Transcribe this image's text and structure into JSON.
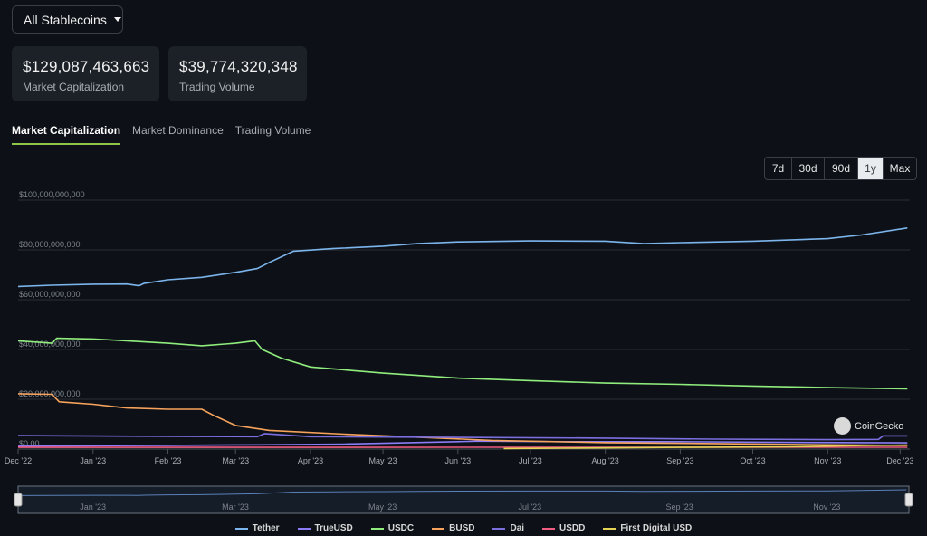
{
  "header": {
    "dropdown_label": "All Stablecoins",
    "stats": [
      {
        "value": "$129,087,463,663",
        "label": "Market Capitalization"
      },
      {
        "value": "$39,774,320,348",
        "label": "Trading Volume"
      }
    ]
  },
  "tabs": [
    {
      "label": "Market Capitalization",
      "active": true
    },
    {
      "label": "Market Dominance",
      "active": false
    },
    {
      "label": "Trading Volume",
      "active": false
    }
  ],
  "ranges": [
    {
      "label": "7d",
      "active": false
    },
    {
      "label": "30d",
      "active": false
    },
    {
      "label": "90d",
      "active": false
    },
    {
      "label": "1y",
      "active": true
    },
    {
      "label": "Max",
      "active": false
    }
  ],
  "watermark": "CoinGecko",
  "colors": {
    "background": "#0d1117",
    "accent": "#8dc647",
    "grid": "#2a2f36"
  },
  "chart_data": {
    "type": "line",
    "y_ticks": [
      "$0.00",
      "$20,000,000,000",
      "$40,000,000,000",
      "$60,000,000,000",
      "$80,000,000,000",
      "$100,000,000,000"
    ],
    "ylim": [
      0,
      100000000000
    ],
    "x_range": [
      "2022-12-01",
      "2023-12-05"
    ],
    "x_ticks": [
      {
        "label": "Dec '22",
        "date": "2022-12-01"
      },
      {
        "label": "Jan '23",
        "date": "2023-01-01"
      },
      {
        "label": "Feb '23",
        "date": "2023-02-01"
      },
      {
        "label": "Mar '23",
        "date": "2023-03-01"
      },
      {
        "label": "Apr '23",
        "date": "2023-04-01"
      },
      {
        "label": "May '23",
        "date": "2023-05-01"
      },
      {
        "label": "Jun '23",
        "date": "2023-06-01"
      },
      {
        "label": "Jul '23",
        "date": "2023-07-01"
      },
      {
        "label": "Aug '23",
        "date": "2023-08-01"
      },
      {
        "label": "Sep '23",
        "date": "2023-09-01"
      },
      {
        "label": "Oct '23",
        "date": "2023-10-01"
      },
      {
        "label": "Nov '23",
        "date": "2023-11-01"
      },
      {
        "label": "Dec '23",
        "date": "2023-12-01"
      }
    ],
    "navigator_ticks": [
      {
        "label": "Jan '23",
        "date": "2023-01-01"
      },
      {
        "label": "Mar '23",
        "date": "2023-03-01"
      },
      {
        "label": "May '23",
        "date": "2023-05-01"
      },
      {
        "label": "Jul '23",
        "date": "2023-07-01"
      },
      {
        "label": "Sep '23",
        "date": "2023-09-01"
      },
      {
        "label": "Nov '23",
        "date": "2023-11-01"
      }
    ],
    "grid": true,
    "legend_position": "bottom",
    "series": [
      {
        "name": "Tether",
        "color": "#7cb5ec",
        "points": [
          [
            "2022-12-01",
            65300000000.0
          ],
          [
            "2022-12-15",
            65800000000.0
          ],
          [
            "2023-01-01",
            66200000000.0
          ],
          [
            "2023-01-15",
            66300000000.0
          ],
          [
            "2023-01-20",
            65600000000.0
          ],
          [
            "2023-01-22",
            66500000000.0
          ],
          [
            "2023-02-01",
            68000000000.0
          ],
          [
            "2023-02-15",
            69000000000.0
          ],
          [
            "2023-03-01",
            71000000000.0
          ],
          [
            "2023-03-10",
            72500000000.0
          ],
          [
            "2023-03-15",
            75000000000.0
          ],
          [
            "2023-03-25",
            79500000000.0
          ],
          [
            "2023-04-10",
            80500000000.0
          ],
          [
            "2023-05-01",
            81500000000.0
          ],
          [
            "2023-05-15",
            82500000000.0
          ],
          [
            "2023-06-01",
            83200000000.0
          ],
          [
            "2023-07-01",
            83600000000.0
          ],
          [
            "2023-08-01",
            83500000000.0
          ],
          [
            "2023-08-17",
            82500000000.0
          ],
          [
            "2023-09-01",
            82900000000.0
          ],
          [
            "2023-10-01",
            83500000000.0
          ],
          [
            "2023-11-01",
            84500000000.0
          ],
          [
            "2023-11-15",
            86000000000.0
          ],
          [
            "2023-12-04",
            88800000000.0
          ]
        ]
      },
      {
        "name": "TrueUSD",
        "color": "#8a7cf6",
        "points": [
          [
            "2022-12-01",
            1200000000.0
          ],
          [
            "2023-02-01",
            1500000000.0
          ],
          [
            "2023-03-10",
            1700000000.0
          ],
          [
            "2023-04-15",
            2000000000.0
          ],
          [
            "2023-06-01",
            3000000000.0
          ],
          [
            "2023-06-10",
            3200000000.0
          ],
          [
            "2023-07-15",
            3000000000.0
          ],
          [
            "2023-09-01",
            3000000000.0
          ],
          [
            "2023-10-15",
            2700000000.0
          ],
          [
            "2023-11-20",
            2600000000.0
          ],
          [
            "2023-12-04",
            2500000000.0
          ]
        ]
      },
      {
        "name": "USDC",
        "color": "#90ed7d",
        "points": [
          [
            "2022-12-01",
            43500000000.0
          ],
          [
            "2022-12-15",
            42500000000.0
          ],
          [
            "2022-12-17",
            44500000000.0
          ],
          [
            "2023-01-01",
            44200000000.0
          ],
          [
            "2023-01-15",
            43500000000.0
          ],
          [
            "2023-02-01",
            42500000000.0
          ],
          [
            "2023-02-15",
            41500000000.0
          ],
          [
            "2023-03-01",
            42500000000.0
          ],
          [
            "2023-03-09",
            43500000000.0
          ],
          [
            "2023-03-12",
            40000000000.0
          ],
          [
            "2023-03-20",
            36500000000.0
          ],
          [
            "2023-04-01",
            33000000000.0
          ],
          [
            "2023-05-01",
            30500000000.0
          ],
          [
            "2023-06-01",
            28500000000.0
          ],
          [
            "2023-07-01",
            27500000000.0
          ],
          [
            "2023-08-01",
            26500000000.0
          ],
          [
            "2023-09-01",
            26000000000.0
          ],
          [
            "2023-10-01",
            25300000000.0
          ],
          [
            "2023-11-01",
            24700000000.0
          ],
          [
            "2023-12-04",
            24200000000.0
          ]
        ]
      },
      {
        "name": "BUSD",
        "color": "#f7a35c",
        "points": [
          [
            "2022-12-01",
            22200000000.0
          ],
          [
            "2022-12-15",
            22000000000.0
          ],
          [
            "2022-12-18",
            19000000000.0
          ],
          [
            "2023-01-01",
            18000000000.0
          ],
          [
            "2023-01-15",
            16500000000.0
          ],
          [
            "2023-02-01",
            16000000000.0
          ],
          [
            "2023-02-15",
            16000000000.0
          ],
          [
            "2023-02-20",
            13500000000.0
          ],
          [
            "2023-03-01",
            9500000000.0
          ],
          [
            "2023-03-15",
            7500000000.0
          ],
          [
            "2023-04-15",
            6000000000.0
          ],
          [
            "2023-05-15",
            4800000000.0
          ],
          [
            "2023-06-15",
            3500000000.0
          ],
          [
            "2023-08-01",
            2600000000.0
          ],
          [
            "2023-09-15",
            2200000000.0
          ],
          [
            "2023-11-01",
            1700000000.0
          ],
          [
            "2023-12-04",
            1500000000.0
          ]
        ]
      },
      {
        "name": "Dai",
        "color": "#7b6fe0",
        "points": [
          [
            "2022-12-01",
            5400000000.0
          ],
          [
            "2023-02-01",
            5100000000.0
          ],
          [
            "2023-03-10",
            5000000000.0
          ],
          [
            "2023-03-13",
            6200000000.0
          ],
          [
            "2023-04-01",
            5000000000.0
          ],
          [
            "2023-06-01",
            4700000000.0
          ],
          [
            "2023-08-01",
            4400000000.0
          ],
          [
            "2023-09-15",
            4000000000.0
          ],
          [
            "2023-11-01",
            3800000000.0
          ],
          [
            "2023-11-22",
            3900000000.0
          ],
          [
            "2023-11-24",
            5300000000.0
          ],
          [
            "2023-12-04",
            5300000000.0
          ]
        ]
      },
      {
        "name": "USDD",
        "color": "#f15c80",
        "points": [
          [
            "2022-12-01",
            700000000.0
          ],
          [
            "2023-06-01",
            720000000.0
          ],
          [
            "2023-12-04",
            730000000.0
          ]
        ]
      },
      {
        "name": "First Digital USD",
        "color": "#e4d354",
        "points": [
          [
            "2023-06-20",
            200000000.0
          ],
          [
            "2023-07-15",
            350000000.0
          ],
          [
            "2023-09-01",
            700000000.0
          ],
          [
            "2023-10-15",
            900000000.0
          ],
          [
            "2023-11-15",
            1400000000.0
          ],
          [
            "2023-12-04",
            1600000000.0
          ]
        ]
      }
    ]
  }
}
